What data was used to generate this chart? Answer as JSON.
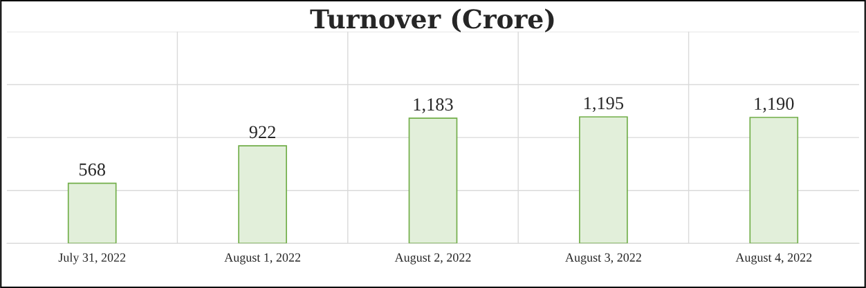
{
  "chart_data": {
    "type": "bar",
    "title": "Turnover (Crore)",
    "categories": [
      "July 31, 2022",
      "August 1, 2022",
      "August 2, 2022",
      "August 3, 2022",
      "August 4, 2022"
    ],
    "values": [
      568,
      922,
      1183,
      1195,
      1190
    ],
    "color": "#e2efda",
    "value_labels": [
      "568",
      "922",
      "1,183",
      "1,195",
      "1,190"
    ],
    "ylim": [
      0,
      2000
    ],
    "yticks": [
      {
        "value": 0,
        "label": null
      },
      {
        "value": 500,
        "label": null
      },
      {
        "value": 1000,
        "label": null
      },
      {
        "value": 1500,
        "label": null
      },
      {
        "value": 2000,
        "label": null
      }
    ],
    "grid": true,
    "tick_labels": "x"
  }
}
